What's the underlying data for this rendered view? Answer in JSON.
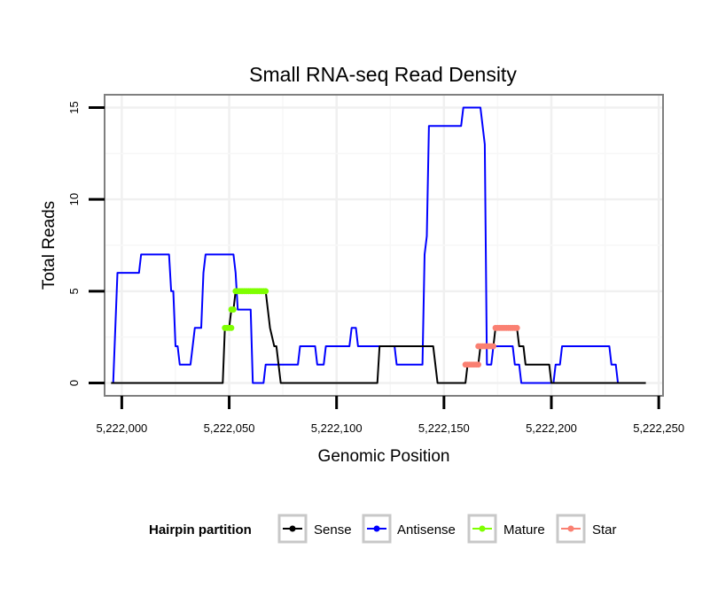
{
  "chart_data": {
    "type": "line",
    "title": "Small RNA-seq Read Density",
    "xlabel": "Genomic Position",
    "ylabel": "Total Reads",
    "xlim": [
      5221992,
      5222252
    ],
    "ylim": [
      -0.7,
      15.7
    ],
    "x_ticks": [
      5222000,
      5222050,
      5222100,
      5222150,
      5222200,
      5222250
    ],
    "x_tick_labels": [
      "5,222,000",
      "5,222,050",
      "5,222,100",
      "5,222,150",
      "5,222,200",
      "5,222,250"
    ],
    "y_ticks": [
      0,
      5,
      10,
      15
    ],
    "y_tick_labels": [
      "0",
      "5",
      "10",
      "15"
    ],
    "grid": true,
    "legend": {
      "title": "Hairpin partition",
      "position": "bottom",
      "entries": [
        "Sense",
        "Antisense",
        "Mature",
        "Star"
      ]
    },
    "series": [
      {
        "name": "Antisense",
        "color": "#0000ff",
        "style": "line",
        "points": [
          [
            5221996,
            0
          ],
          [
            5221998,
            6
          ],
          [
            5222008,
            6
          ],
          [
            5222009,
            7
          ],
          [
            5222022,
            7
          ],
          [
            5222023,
            5
          ],
          [
            5222024,
            5
          ],
          [
            5222025,
            2
          ],
          [
            5222026,
            2
          ],
          [
            5222027,
            1
          ],
          [
            5222032,
            1
          ],
          [
            5222034,
            3
          ],
          [
            5222037,
            3
          ],
          [
            5222038,
            6
          ],
          [
            5222039,
            7
          ],
          [
            5222052,
            7
          ],
          [
            5222053,
            6
          ],
          [
            5222054,
            4
          ],
          [
            5222060,
            4
          ],
          [
            5222061,
            0
          ],
          [
            5222066,
            0
          ],
          [
            5222067,
            1
          ],
          [
            5222082,
            1
          ],
          [
            5222083,
            2
          ],
          [
            5222090,
            2
          ],
          [
            5222091,
            1
          ],
          [
            5222094,
            1
          ],
          [
            5222095,
            2
          ],
          [
            5222106,
            2
          ],
          [
            5222107,
            3
          ],
          [
            5222109,
            3
          ],
          [
            5222110,
            2
          ],
          [
            5222127,
            2
          ],
          [
            5222128,
            1
          ],
          [
            5222140,
            1
          ],
          [
            5222141,
            7
          ],
          [
            5222142,
            8
          ],
          [
            5222143,
            14
          ],
          [
            5222158,
            14
          ],
          [
            5222159,
            15
          ],
          [
            5222167,
            15
          ],
          [
            5222169,
            13
          ],
          [
            5222170,
            1
          ],
          [
            5222172,
            1
          ],
          [
            5222173,
            2
          ],
          [
            5222182,
            2
          ],
          [
            5222183,
            1
          ],
          [
            5222185,
            1
          ],
          [
            5222186,
            0
          ],
          [
            5222201,
            0
          ],
          [
            5222202,
            1
          ],
          [
            5222204,
            1
          ],
          [
            5222205,
            2
          ],
          [
            5222227,
            2
          ],
          [
            5222228,
            1
          ],
          [
            5222230,
            1
          ],
          [
            5222231,
            0
          ]
        ]
      },
      {
        "name": "Sense",
        "color": "#000000",
        "style": "line",
        "points": [
          [
            5221995,
            0
          ],
          [
            5222047,
            0
          ],
          [
            5222048,
            3
          ],
          [
            5222050,
            3
          ],
          [
            5222051,
            4
          ],
          [
            5222052,
            4
          ],
          [
            5222053,
            5
          ],
          [
            5222067,
            5
          ],
          [
            5222069,
            3
          ],
          [
            5222071,
            2
          ],
          [
            5222072,
            2
          ],
          [
            5222074,
            0
          ],
          [
            5222119,
            0
          ],
          [
            5222120,
            2
          ],
          [
            5222145,
            2
          ],
          [
            5222147,
            0
          ],
          [
            5222160,
            0
          ],
          [
            5222161,
            1
          ],
          [
            5222166,
            1
          ],
          [
            5222167,
            2
          ],
          [
            5222173,
            2
          ],
          [
            5222174,
            3
          ],
          [
            5222184,
            3
          ],
          [
            5222185,
            2
          ],
          [
            5222187,
            2
          ],
          [
            5222188,
            1
          ],
          [
            5222194,
            1
          ],
          [
            5222199,
            1
          ],
          [
            5222200,
            0
          ],
          [
            5222244,
            0
          ]
        ]
      },
      {
        "name": "Mature",
        "color": "#7fff00",
        "style": "point-line",
        "segments": [
          [
            [
              5222048,
              3
            ],
            [
              5222051,
              3
            ]
          ],
          [
            [
              5222051,
              4
            ],
            [
              5222052,
              4
            ]
          ],
          [
            [
              5222053,
              5
            ],
            [
              5222067,
              5
            ]
          ]
        ]
      },
      {
        "name": "Star",
        "color": "#fa8072",
        "style": "point-line",
        "segments": [
          [
            [
              5222160,
              1
            ],
            [
              5222166,
              1
            ]
          ],
          [
            [
              5222166,
              2
            ],
            [
              5222173,
              2
            ]
          ],
          [
            [
              5222174,
              3
            ],
            [
              5222184,
              3
            ]
          ]
        ]
      }
    ]
  }
}
